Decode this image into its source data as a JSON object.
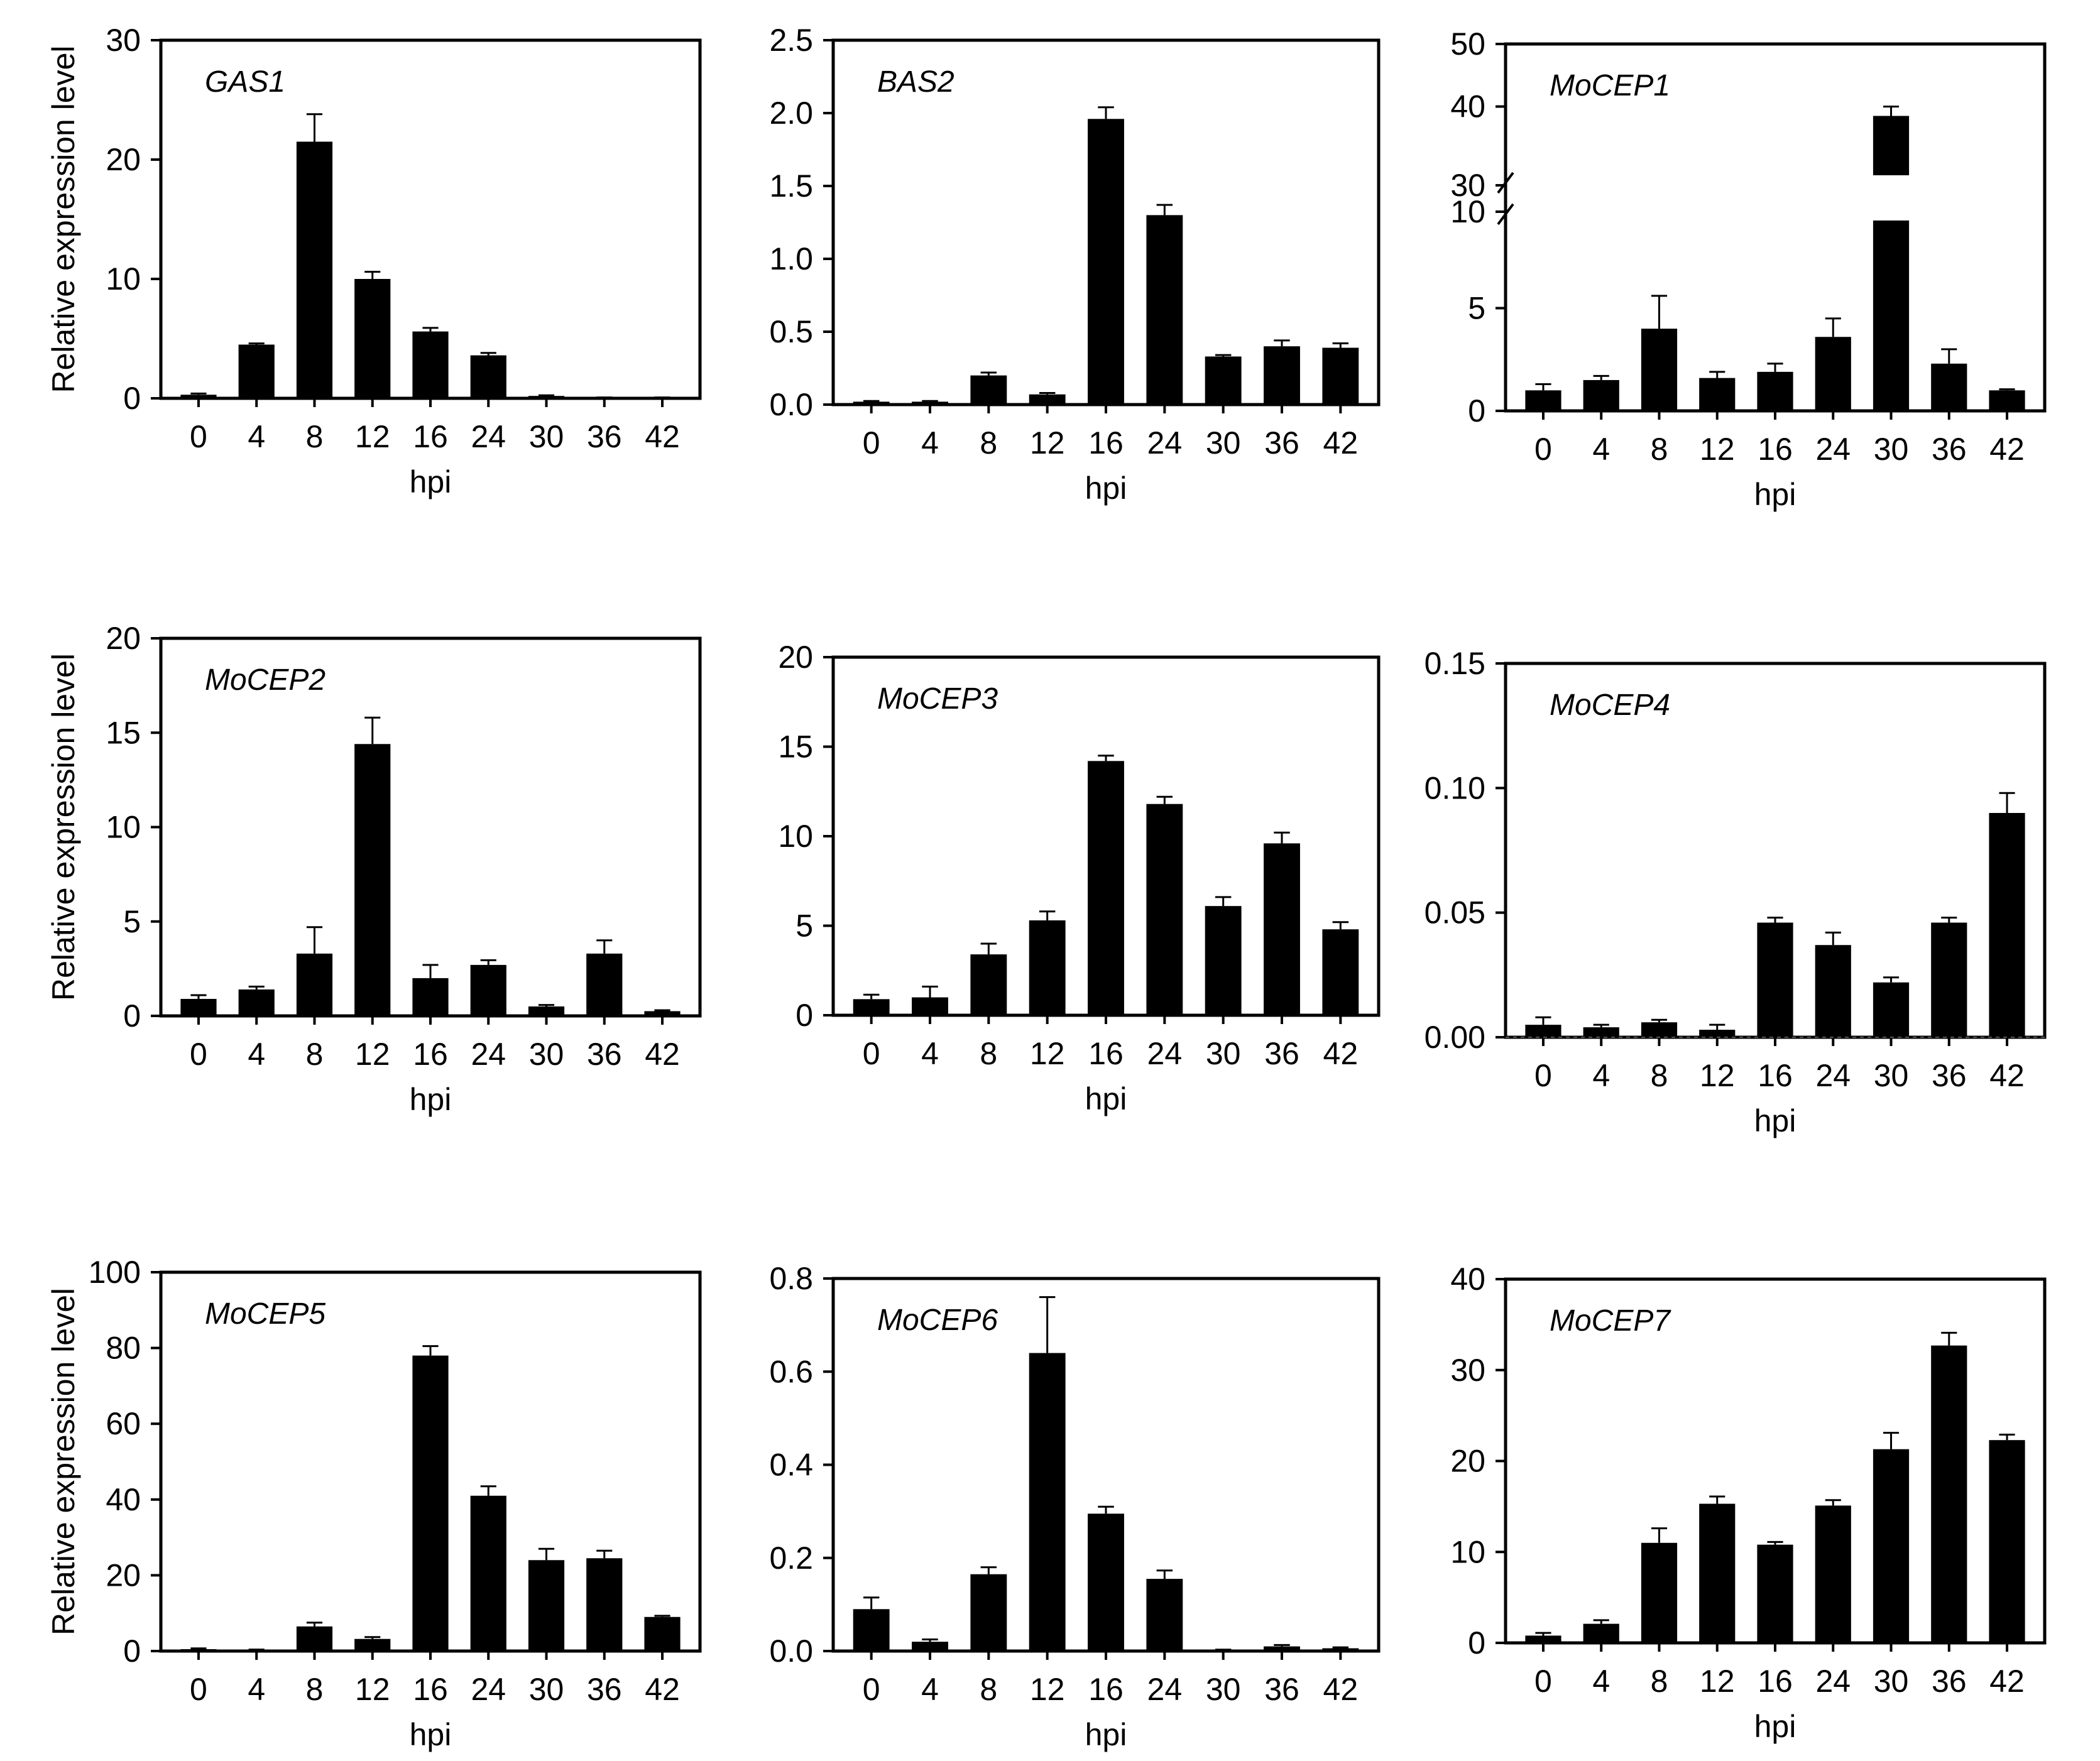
{
  "figure": {
    "ylabel": "Relative expression level",
    "xlabel": "hpi"
  },
  "chart_data": [
    {
      "type": "bar",
      "title": "GAS1",
      "categories": [
        "0",
        "4",
        "8",
        "12",
        "16",
        "24",
        "30",
        "36",
        "42"
      ],
      "values": [
        0.3,
        4.5,
        21.5,
        10.0,
        5.6,
        3.6,
        0.2,
        0.05,
        0.05
      ],
      "errors": [
        0.1,
        0.1,
        2.3,
        0.6,
        0.3,
        0.2,
        0.05,
        0.02,
        0.02
      ],
      "ylim": [
        0,
        30
      ],
      "yticks": [
        "0",
        "10",
        "20",
        "30"
      ],
      "ylabel": "Relative expression level",
      "xlabel": "hpi"
    },
    {
      "type": "bar",
      "title": "BAS2",
      "categories": [
        "0",
        "4",
        "8",
        "12",
        "16",
        "24",
        "30",
        "36",
        "42"
      ],
      "values": [
        0.02,
        0.02,
        0.2,
        0.07,
        1.96,
        1.3,
        0.33,
        0.4,
        0.39
      ],
      "errors": [
        0.005,
        0.005,
        0.02,
        0.01,
        0.08,
        0.07,
        0.01,
        0.04,
        0.03
      ],
      "ylim": [
        0,
        2.5
      ],
      "yticks": [
        "0.0",
        "0.5",
        "1.0",
        "1.5",
        "2.0",
        "2.5"
      ],
      "ylabel": "",
      "xlabel": "hpi"
    },
    {
      "type": "bar",
      "title": "MoCEP1",
      "categories": [
        "0",
        "4",
        "8",
        "12",
        "16",
        "24",
        "30",
        "36",
        "42"
      ],
      "values": [
        1.0,
        1.5,
        4.0,
        1.6,
        1.9,
        3.6,
        38.5,
        2.3,
        1.0
      ],
      "errors": [
        0.3,
        0.2,
        1.6,
        0.3,
        0.4,
        0.9,
        1.5,
        0.7,
        0.05
      ],
      "ylim": [
        0,
        50
      ],
      "yticks": [
        "0",
        "5",
        "10",
        "30",
        "40",
        "50"
      ],
      "axis_break": {
        "lower": [
          0,
          10
        ],
        "upper": [
          26,
          50
        ]
      },
      "ylabel": "",
      "xlabel": "hpi"
    },
    {
      "type": "bar",
      "title": "MoCEP2",
      "categories": [
        "0",
        "4",
        "8",
        "12",
        "16",
        "24",
        "30",
        "36",
        "42"
      ],
      "values": [
        0.9,
        1.4,
        3.3,
        14.4,
        2.0,
        2.7,
        0.5,
        3.3,
        0.25
      ],
      "errors": [
        0.2,
        0.15,
        1.4,
        1.4,
        0.7,
        0.25,
        0.08,
        0.7,
        0.05
      ],
      "ylim": [
        0,
        20
      ],
      "yticks": [
        "0",
        "5",
        "10",
        "15",
        "20"
      ],
      "ylabel": "Relative expression level",
      "xlabel": "hpi"
    },
    {
      "type": "bar",
      "title": "MoCEP3",
      "categories": [
        "0",
        "4",
        "8",
        "12",
        "16",
        "24",
        "30",
        "36",
        "42"
      ],
      "values": [
        0.9,
        1.0,
        3.4,
        5.3,
        14.2,
        11.8,
        6.1,
        9.6,
        4.8
      ],
      "errors": [
        0.25,
        0.6,
        0.6,
        0.5,
        0.3,
        0.4,
        0.5,
        0.6,
        0.4
      ],
      "ylim": [
        0,
        20
      ],
      "yticks": [
        "0",
        "5",
        "10",
        "15",
        "20"
      ],
      "ylabel": "",
      "xlabel": "hpi"
    },
    {
      "type": "bar",
      "title": "MoCEP4",
      "categories": [
        "0",
        "4",
        "8",
        "12",
        "16",
        "24",
        "30",
        "36",
        "42"
      ],
      "values": [
        0.005,
        0.004,
        0.006,
        0.003,
        0.046,
        0.037,
        0.022,
        0.046,
        0.09
      ],
      "errors": [
        0.003,
        0.001,
        0.001,
        0.002,
        0.002,
        0.005,
        0.002,
        0.002,
        0.008
      ],
      "ylim": [
        0,
        0.15
      ],
      "yticks": [
        "0.00",
        "0.05",
        "0.10",
        "0.15"
      ],
      "ylabel": "",
      "xlabel": "hpi"
    },
    {
      "type": "bar",
      "title": "MoCEP5",
      "categories": [
        "0",
        "4",
        "8",
        "12",
        "16",
        "24",
        "30",
        "36",
        "42"
      ],
      "values": [
        0.5,
        0.3,
        6.5,
        3.2,
        78.0,
        41.0,
        24.0,
        24.5,
        9.0
      ],
      "errors": [
        0.2,
        0.1,
        1.0,
        0.5,
        2.5,
        2.5,
        3.0,
        2.0,
        0.3
      ],
      "ylim": [
        0,
        100
      ],
      "yticks": [
        "0",
        "20",
        "40",
        "60",
        "80",
        "100"
      ],
      "ylabel": "Relative expression level",
      "xlabel": "hpi"
    },
    {
      "type": "bar",
      "title": "MoCEP6",
      "categories": [
        "0",
        "4",
        "8",
        "12",
        "16",
        "24",
        "30",
        "36",
        "42"
      ],
      "values": [
        0.09,
        0.02,
        0.165,
        0.64,
        0.295,
        0.155,
        0.002,
        0.01,
        0.006
      ],
      "errors": [
        0.025,
        0.005,
        0.015,
        0.12,
        0.015,
        0.018,
        0.001,
        0.003,
        0.002
      ],
      "ylim": [
        0,
        0.8
      ],
      "yticks": [
        "0.0",
        "0.2",
        "0.4",
        "0.6",
        "0.8"
      ],
      "ylabel": "",
      "xlabel": "hpi"
    },
    {
      "type": "bar",
      "title": "MoCEP7",
      "categories": [
        "0",
        "4",
        "8",
        "12",
        "16",
        "24",
        "30",
        "36",
        "42"
      ],
      "values": [
        0.8,
        2.1,
        11.0,
        15.3,
        10.8,
        15.1,
        21.3,
        32.7,
        22.3
      ],
      "errors": [
        0.3,
        0.4,
        1.6,
        0.8,
        0.3,
        0.6,
        1.8,
        1.4,
        0.6
      ],
      "ylim": [
        0,
        40
      ],
      "yticks": [
        "0",
        "10",
        "20",
        "30",
        "40"
      ],
      "ylabel": "",
      "xlabel": "hpi"
    }
  ]
}
